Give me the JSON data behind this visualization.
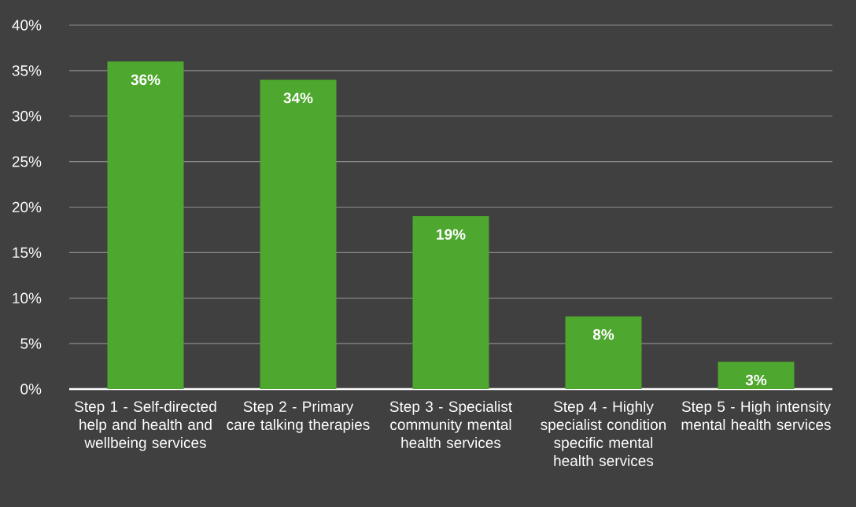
{
  "chart_data": {
    "type": "bar",
    "categories": [
      "Step 1 - Self-directed help and health and wellbeing services",
      "Step 2 - Primary care talking therapies",
      "Step 3 - Specialist community mental health services",
      "Step 4 - Highly specialist condition specific mental health services",
      "Step 5 - High intensity mental health services"
    ],
    "values": [
      36,
      34,
      19,
      8,
      3
    ],
    "value_labels": [
      "36%",
      "34%",
      "19%",
      "8%",
      "3%"
    ],
    "color": "#4ea72e",
    "ylim": [
      0,
      40
    ],
    "yticks": [
      {
        "value": 0,
        "label": "0%"
      },
      {
        "value": 5,
        "label": "5%"
      },
      {
        "value": 10,
        "label": "10%"
      },
      {
        "value": 15,
        "label": "15%"
      },
      {
        "value": 20,
        "label": "20%"
      },
      {
        "value": 25,
        "label": "25%"
      },
      {
        "value": 30,
        "label": "30%"
      },
      {
        "value": 35,
        "label": "35%"
      },
      {
        "value": 40,
        "label": "40%"
      }
    ],
    "grid": "y"
  }
}
